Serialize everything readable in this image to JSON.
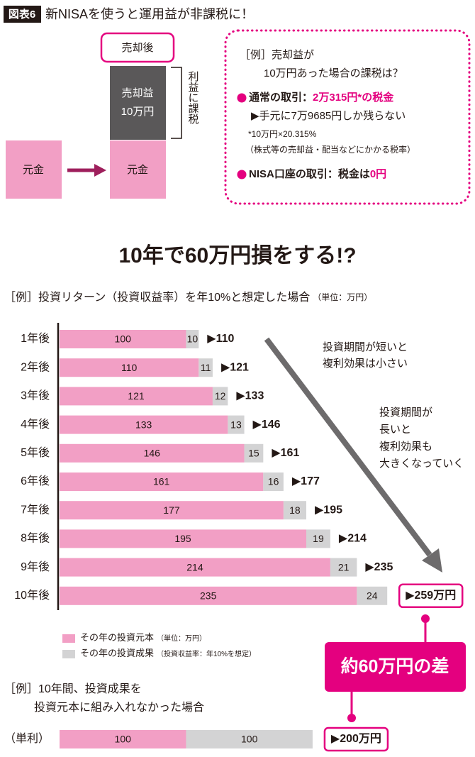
{
  "header": {
    "badge": "図表6",
    "title": "新NISAを使うと運用益が非課税に！"
  },
  "diagram": {
    "after_sale": "売却後",
    "gain_box": [
      "売却益",
      "10万円"
    ],
    "taxed": "利益に課税",
    "principal_left": "元金",
    "principal_right": "元金"
  },
  "example": {
    "lines": [
      "［例］売却益が",
      "10万円あった場合の課税は？"
    ],
    "normal": {
      "label": "通常の取引：",
      "amount": "2万315円*の税金"
    },
    "remaining": "▶手元に7万9685円しか残らない",
    "footnote": "*10万円×20.315%",
    "footnote_note": "（株式等の売却益・配当などにかかる税率）",
    "nisa": {
      "label": "NISA口座の取引：税金は",
      "amount": "0円"
    }
  },
  "comparison": "約60万円の差",
  "chart_data": [
    {
      "type": "bar",
      "orientation": "horizontal",
      "stacked": true,
      "title": "10年で60万円損をする!?",
      "subtitle": "［例］投資リターン（投資収益率）を年10%と想定した場合",
      "unit": "（単位：万円）",
      "categories": [
        "1年後",
        "2年後",
        "3年後",
        "4年後",
        "5年後",
        "6年後",
        "7年後",
        "8年後",
        "9年後",
        "10年後"
      ],
      "series": [
        {
          "name": "その年の投資元本",
          "note": "（単位：万円）",
          "color": "#f29fc5",
          "values": [
            100,
            110,
            121,
            133,
            146,
            161,
            177,
            195,
            214,
            235
          ]
        },
        {
          "name": "その年の投資成果",
          "note": "（投資収益率：年10%を想定）",
          "color": "#d3d3d4",
          "values": [
            10,
            11,
            12,
            13,
            15,
            16,
            18,
            19,
            21,
            24
          ]
        }
      ],
      "totals": {
        "values": [
          110,
          121,
          133,
          146,
          161,
          177,
          195,
          214,
          235,
          259
        ],
        "value_labels": [
          "▶110",
          "▶121",
          "▶133",
          "▶146",
          "▶161",
          "▶177",
          "▶195",
          "▶214",
          "▶235",
          "▶259万円"
        ]
      },
      "xlim": [
        0,
        260
      ],
      "annotations": [
        [
          "投資期間が短いと",
          "複利効果は小さい"
        ],
        [
          "投資期間が",
          "長いと",
          "複利効果も",
          "大きくなっていく"
        ]
      ]
    },
    {
      "type": "bar",
      "orientation": "horizontal",
      "stacked": true,
      "title": [
        "［例］10年間、投資成果を",
        "投資元本に組み入れなかった場合"
      ],
      "categories": [
        "（単利）"
      ],
      "series": [
        {
          "color": "#f29fc5",
          "values": [
            100
          ]
        },
        {
          "color": "#d3d3d4",
          "values": [
            100
          ]
        }
      ],
      "totals": {
        "values": [
          200
        ],
        "value_labels": [
          "▶200万円"
        ]
      },
      "xlim": [
        0,
        260
      ]
    }
  ]
}
